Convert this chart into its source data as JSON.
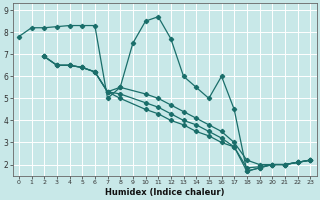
{
  "xlabel": "Humidex (Indice chaleur)",
  "ylabel": "",
  "bg_color": "#c8e8e8",
  "grid_color": "#ffffff",
  "line_color": "#1a6e6a",
  "xlim": [
    -0.5,
    23.5
  ],
  "ylim": [
    1.5,
    9.3
  ],
  "xticks": [
    0,
    1,
    2,
    3,
    4,
    5,
    6,
    7,
    8,
    9,
    10,
    11,
    12,
    13,
    14,
    15,
    16,
    17,
    18,
    19,
    20,
    21,
    22,
    23
  ],
  "yticks": [
    2,
    3,
    4,
    5,
    6,
    7,
    8,
    9
  ],
  "line1_x": [
    0,
    1,
    2,
    3,
    4,
    5,
    6,
    7,
    8,
    9,
    10,
    11,
    12,
    13,
    14,
    15,
    16,
    17,
    18,
    19,
    20,
    21,
    22,
    23
  ],
  "line1_y": [
    7.8,
    8.2,
    8.2,
    8.25,
    8.3,
    8.3,
    8.3,
    5.0,
    5.5,
    7.5,
    8.5,
    8.7,
    7.7,
    6.0,
    5.5,
    5.0,
    6.0,
    4.5,
    1.7,
    1.85,
    2.0,
    2.0,
    2.1,
    2.2
  ],
  "line2_x": [
    2,
    3,
    4,
    5,
    6,
    7,
    8,
    10,
    11,
    12,
    13,
    14,
    15,
    16,
    17,
    18,
    19,
    20,
    21,
    22,
    23
  ],
  "line2_y": [
    6.9,
    6.5,
    6.5,
    6.4,
    6.2,
    5.3,
    5.0,
    4.5,
    4.3,
    4.0,
    3.8,
    3.5,
    3.3,
    3.0,
    2.8,
    1.7,
    1.85,
    2.0,
    2.0,
    2.1,
    2.2
  ],
  "line3_x": [
    2,
    3,
    4,
    5,
    6,
    7,
    8,
    10,
    11,
    12,
    13,
    14,
    15,
    16,
    17,
    18,
    19,
    20,
    21,
    22,
    23
  ],
  "line3_y": [
    6.9,
    6.5,
    6.5,
    6.4,
    6.2,
    5.3,
    5.2,
    4.8,
    4.6,
    4.3,
    4.0,
    3.8,
    3.5,
    3.2,
    2.8,
    1.85,
    1.9,
    2.0,
    2.0,
    2.1,
    2.2
  ],
  "line4_x": [
    2,
    3,
    4,
    5,
    6,
    7,
    8,
    10,
    11,
    12,
    13,
    14,
    15,
    16,
    17,
    18,
    19,
    20,
    21,
    22,
    23
  ],
  "line4_y": [
    6.9,
    6.5,
    6.5,
    6.4,
    6.2,
    5.3,
    5.5,
    5.2,
    5.0,
    4.7,
    4.4,
    4.1,
    3.8,
    3.5,
    3.0,
    2.2,
    2.0,
    2.0,
    2.0,
    2.1,
    2.2
  ]
}
